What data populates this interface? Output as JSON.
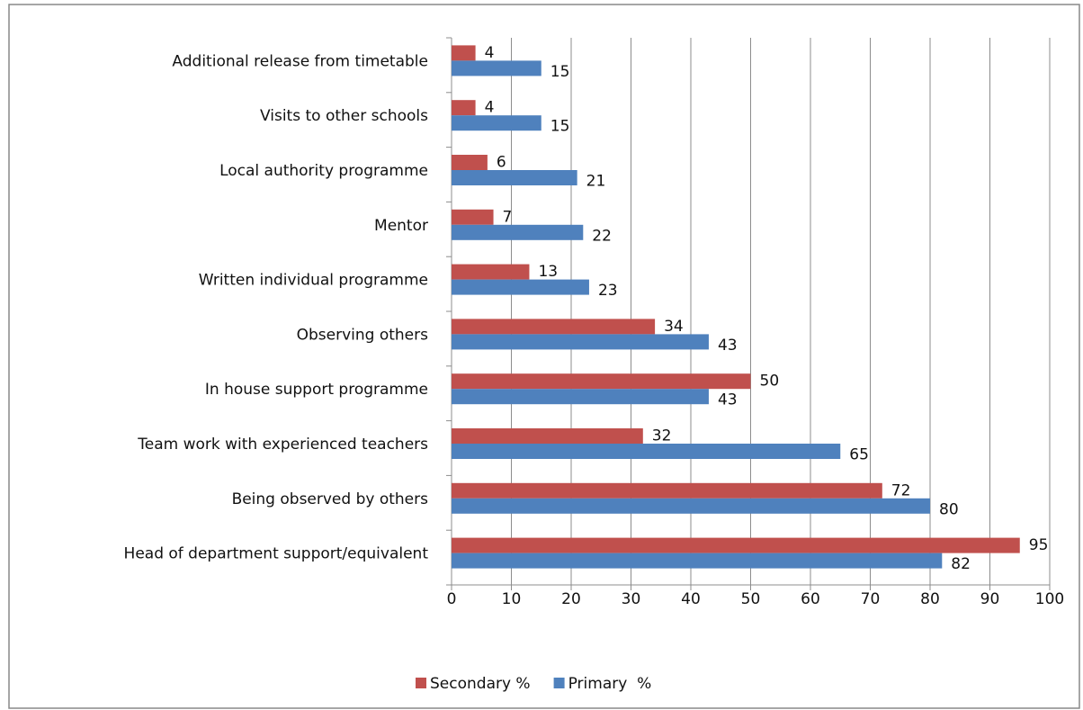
{
  "chart_data": {
    "type": "bar",
    "orientation": "horizontal",
    "categories": [
      "Additional release from timetable",
      "Visits to other schools",
      "Local authority programme",
      "Mentor",
      "Written individual programme",
      "Observing others",
      "In house support programme",
      "Team work with experienced teachers",
      "Being observed by others",
      "Head of department support/equivalent"
    ],
    "series": [
      {
        "name": "Secondary %",
        "color": "#c0504d",
        "values": [
          4,
          4,
          6,
          7,
          13,
          34,
          50,
          32,
          72,
          95
        ]
      },
      {
        "name": "Primary  %",
        "color": "#4f81bd",
        "values": [
          15,
          15,
          21,
          22,
          23,
          43,
          43,
          65,
          80,
          82
        ]
      }
    ],
    "xlim": [
      0,
      100
    ],
    "xticks": [
      0,
      10,
      20,
      30,
      40,
      50,
      60,
      70,
      80,
      90,
      100
    ],
    "grid": true,
    "legend": "bottom"
  }
}
